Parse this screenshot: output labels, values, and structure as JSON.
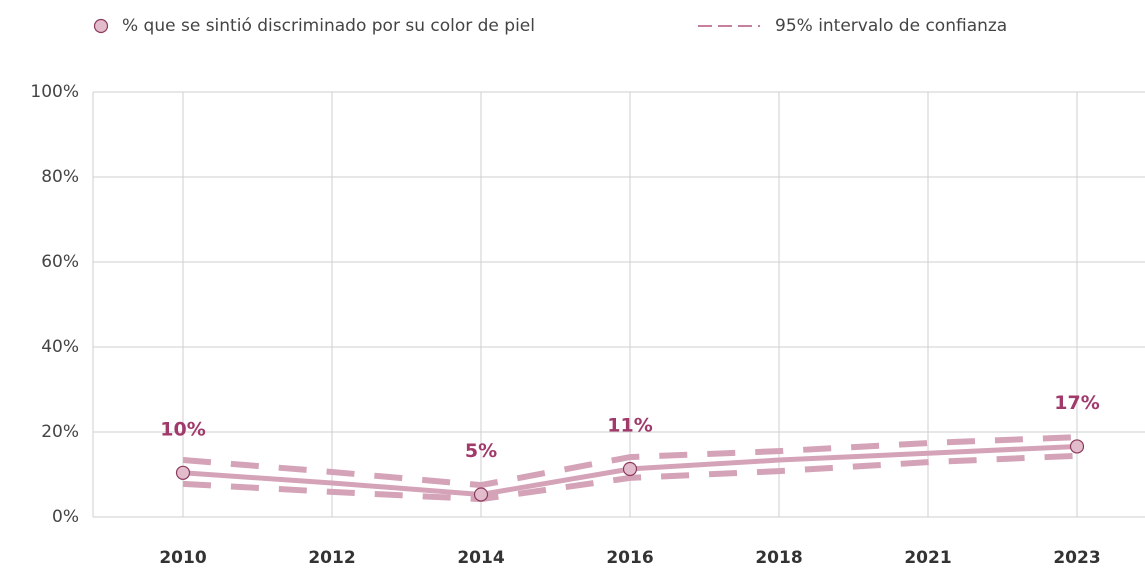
{
  "chart_data": {
    "type": "line",
    "categories": [
      "2010",
      "2012",
      "2014",
      "2016",
      "2018",
      "2021",
      "2023"
    ],
    "series": [
      {
        "name": "% que se sintió discriminado por su color de piel",
        "color": "#d4a3b8",
        "values": [
          10.4,
          8.0,
          5.3,
          11.3,
          13.4,
          15.0,
          16.6
        ],
        "value_labels": [
          "10%",
          null,
          "5%",
          "11%",
          null,
          null,
          "17%"
        ]
      }
    ],
    "interval": {
      "name": "95% intervalo de confianza",
      "color": "#d4a3b8",
      "upper": [
        13.4,
        10.6,
        7.5,
        14.1,
        15.5,
        17.4,
        18.8
      ],
      "lower": [
        7.8,
        5.9,
        4.2,
        9.2,
        10.8,
        12.9,
        14.4
      ]
    },
    "ylim": [
      0,
      100
    ],
    "yticks": [
      {
        "value": 0,
        "label": "0%"
      },
      {
        "value": 20,
        "label": "20%"
      },
      {
        "value": 40,
        "label": "40%"
      },
      {
        "value": 60,
        "label": "60%"
      },
      {
        "value": 80,
        "label": "80%"
      },
      {
        "value": 100,
        "label": "100%"
      }
    ],
    "grid": true
  }
}
